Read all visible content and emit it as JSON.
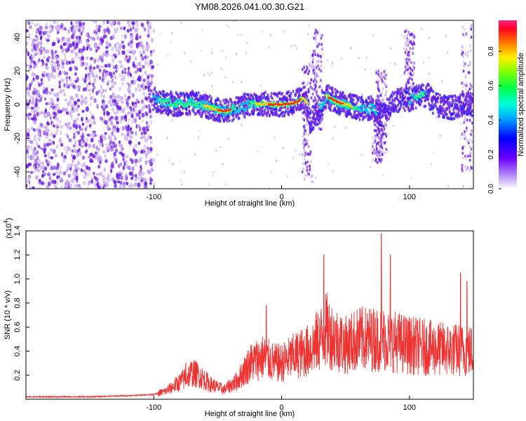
{
  "title": "YM08.2026.041.00.30.G21",
  "spectrogram": {
    "type": "heatmap",
    "xlabel": "Height of straight line (km)",
    "ylabel": "Frequency (Hz)",
    "xlim": [
      -200,
      150
    ],
    "ylim": [
      -50,
      50
    ],
    "xticks": [
      -100,
      0,
      100
    ],
    "yticks": [
      -40,
      -20,
      0,
      20,
      40
    ],
    "colorbar": {
      "label": "Normalized spectral amplitude",
      "range": [
        0,
        0.98
      ],
      "ticks": [
        "0.0",
        "0.2",
        "0.4",
        "0.6",
        "0.8"
      ]
    },
    "ridge": [
      [
        -100,
        3
      ],
      [
        -90,
        1
      ],
      [
        -80,
        0
      ],
      [
        -70,
        1
      ],
      [
        -60,
        -1
      ],
      [
        -50,
        -3
      ],
      [
        -45,
        -4
      ],
      [
        -40,
        -3
      ],
      [
        -30,
        -1
      ],
      [
        -20,
        1
      ],
      [
        -10,
        0
      ],
      [
        0,
        0
      ],
      [
        10,
        1
      ],
      [
        15,
        3
      ],
      [
        18,
        4
      ],
      [
        20,
        0
      ],
      [
        22,
        -10
      ],
      [
        28,
        -5
      ],
      [
        35,
        5
      ],
      [
        40,
        3
      ],
      [
        45,
        1
      ],
      [
        50,
        0
      ],
      [
        55,
        -1
      ],
      [
        60,
        -2
      ],
      [
        65,
        -3
      ],
      [
        70,
        -2
      ],
      [
        75,
        -5
      ],
      [
        80,
        -6
      ],
      [
        85,
        0
      ],
      [
        90,
        2
      ],
      [
        95,
        3
      ],
      [
        100,
        3
      ],
      [
        105,
        4
      ],
      [
        110,
        6
      ],
      [
        115,
        5
      ],
      [
        120,
        0
      ],
      [
        130,
        -2
      ],
      [
        150,
        0
      ]
    ]
  },
  "snr": {
    "type": "line",
    "xlabel": "Height of straight line (km)",
    "ylabel": "SNR (10 * v/v)",
    "exponent_label": "(x10",
    "exponent_power": "4",
    "exponent_close": ")",
    "xlim": [
      -200,
      150
    ],
    "ylim": [
      0,
      1.4
    ],
    "xticks": [
      -100,
      0,
      100
    ],
    "yticks": [
      "0.2",
      "0.4",
      "0.6",
      "0.8",
      "1.0",
      "1.2",
      "1.4"
    ],
    "series_color": "#ee3333",
    "envelope": [
      [
        -200,
        0.02
      ],
      [
        -150,
        0.02
      ],
      [
        -120,
        0.03
      ],
      [
        -100,
        0.04
      ],
      [
        -90,
        0.07
      ],
      [
        -80,
        0.14
      ],
      [
        -70,
        0.22
      ],
      [
        -65,
        0.2
      ],
      [
        -55,
        0.12
      ],
      [
        -45,
        0.08
      ],
      [
        -35,
        0.15
      ],
      [
        -25,
        0.3
      ],
      [
        -15,
        0.35
      ],
      [
        -5,
        0.3
      ],
      [
        0,
        0.3
      ],
      [
        10,
        0.36
      ],
      [
        20,
        0.4
      ],
      [
        25,
        0.45
      ],
      [
        30,
        0.5
      ],
      [
        35,
        0.58
      ],
      [
        40,
        0.52
      ],
      [
        50,
        0.45
      ],
      [
        60,
        0.5
      ],
      [
        80,
        0.5
      ],
      [
        100,
        0.45
      ],
      [
        120,
        0.42
      ],
      [
        150,
        0.4
      ]
    ],
    "peaks": [
      [
        -75,
        0.3
      ],
      [
        -12,
        0.78
      ],
      [
        33,
        1.2
      ],
      [
        78,
        1.38
      ],
      [
        85,
        1.2
      ],
      [
        140,
        1.05
      ],
      [
        145,
        0.98
      ]
    ]
  },
  "colors": {
    "line": "#ee3333",
    "dots_primary": "#6a1ee0",
    "dots_faint": "#c8a8f2"
  }
}
